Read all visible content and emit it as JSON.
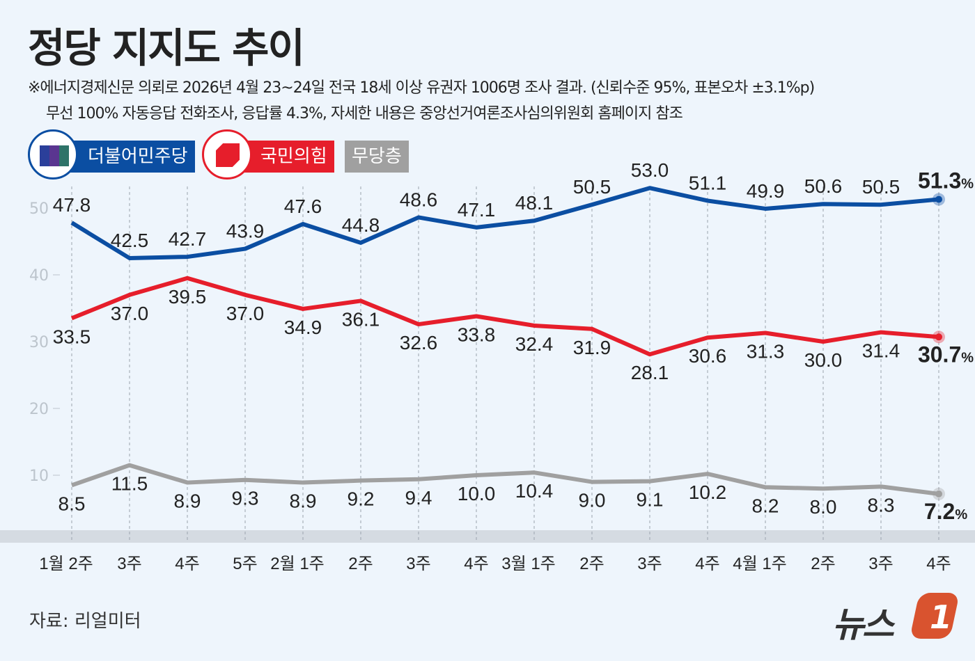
{
  "title": "정당 지지도 추이",
  "notes": [
    "※에너지경제신문 의뢰로 2026년 4월 23~24일 전국 18세 이상 유권자 1006명 조사 결과. (신뢰수준 95%, 표본오차 ±3.1%p)",
    "무선 100% 자동응답 전화조사, 응답률 4.3%, 자세한 내용은 중앙선거여론조사심의위원회 홈페이지 참조"
  ],
  "source": "자료: 리얼미터",
  "logo_text": "뉴스1",
  "colors": {
    "democratic": "#0b4ea2",
    "ppp": "#e61e2b",
    "independent": "#a0a0a0",
    "background": "#eef5fc"
  },
  "chart_data": {
    "type": "line",
    "title": "정당 지지도 추이",
    "categories": [
      "1월 2주",
      "3주",
      "4주",
      "5주",
      "2월 1주",
      "2주",
      "3주",
      "4주",
      "3월 1주",
      "2주",
      "3주",
      "4주",
      "4월 1주",
      "2주",
      "3주",
      "4주"
    ],
    "ylim": [
      0,
      55
    ],
    "yticks": [
      10,
      20,
      30,
      40,
      50
    ],
    "grid": "vertical dashed",
    "legend_position": "top-left",
    "unit": "%",
    "series": [
      {
        "name": "더불어민주당",
        "color": "#0b4ea2",
        "values": [
          47.8,
          42.5,
          42.7,
          43.9,
          47.6,
          44.8,
          48.6,
          47.1,
          48.1,
          50.5,
          53.0,
          51.1,
          49.9,
          50.6,
          50.5,
          51.3
        ]
      },
      {
        "name": "국민의힘",
        "color": "#e61e2b",
        "values": [
          33.5,
          37.0,
          39.5,
          37.0,
          34.9,
          36.1,
          32.6,
          33.8,
          32.4,
          31.9,
          28.1,
          30.6,
          31.3,
          30.0,
          31.4,
          30.7
        ]
      },
      {
        "name": "무당층",
        "color": "#a0a0a0",
        "values": [
          8.5,
          11.5,
          8.9,
          9.3,
          8.9,
          9.2,
          9.4,
          10.0,
          10.4,
          9.0,
          9.1,
          10.2,
          8.2,
          8.0,
          8.3,
          7.2
        ]
      }
    ]
  }
}
